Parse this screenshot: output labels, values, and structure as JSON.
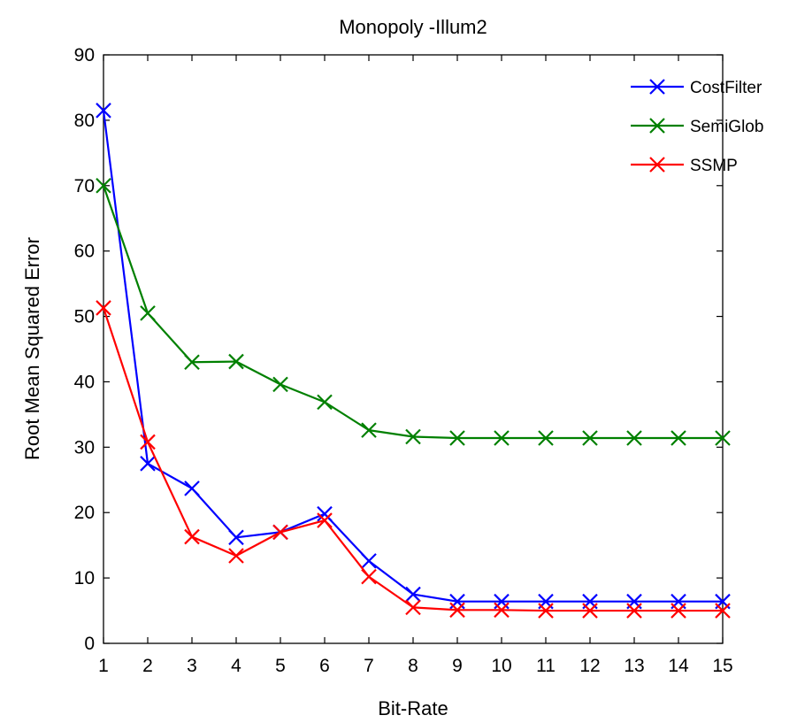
{
  "chart_data": {
    "type": "line",
    "title": "Monopoly -Illum2",
    "xlabel": "Bit-Rate",
    "ylabel": "Root Mean Squared Error",
    "xlim": [
      1,
      15
    ],
    "ylim": [
      0,
      90
    ],
    "xticks": [
      1,
      2,
      3,
      4,
      5,
      6,
      7,
      8,
      9,
      10,
      11,
      12,
      13,
      14,
      15
    ],
    "yticks": [
      0,
      10,
      20,
      30,
      40,
      50,
      60,
      70,
      80,
      90
    ],
    "grid": false,
    "legend_position": "top-right",
    "marker": "x",
    "x": [
      1,
      2,
      3,
      4,
      5,
      6,
      7,
      8,
      9,
      10,
      11,
      12,
      13,
      14,
      15
    ],
    "series": [
      {
        "name": "CostFilter",
        "color": "#0000ff",
        "values": [
          81.5,
          27.5,
          23.7,
          16.2,
          17.0,
          19.8,
          12.6,
          7.5,
          6.4,
          6.4,
          6.4,
          6.4,
          6.4,
          6.4,
          6.4
        ]
      },
      {
        "name": "SemiGlob",
        "color": "#008000",
        "values": [
          70.0,
          50.5,
          43.0,
          43.1,
          39.6,
          36.9,
          32.6,
          31.6,
          31.4,
          31.4,
          31.4,
          31.4,
          31.4,
          31.4,
          31.4
        ]
      },
      {
        "name": "SSMP",
        "color": "#ff0000",
        "values": [
          51.3,
          30.8,
          16.3,
          13.4,
          17.0,
          18.8,
          10.2,
          5.5,
          5.1,
          5.1,
          5.0,
          5.0,
          5.0,
          5.0,
          5.0
        ]
      }
    ]
  }
}
